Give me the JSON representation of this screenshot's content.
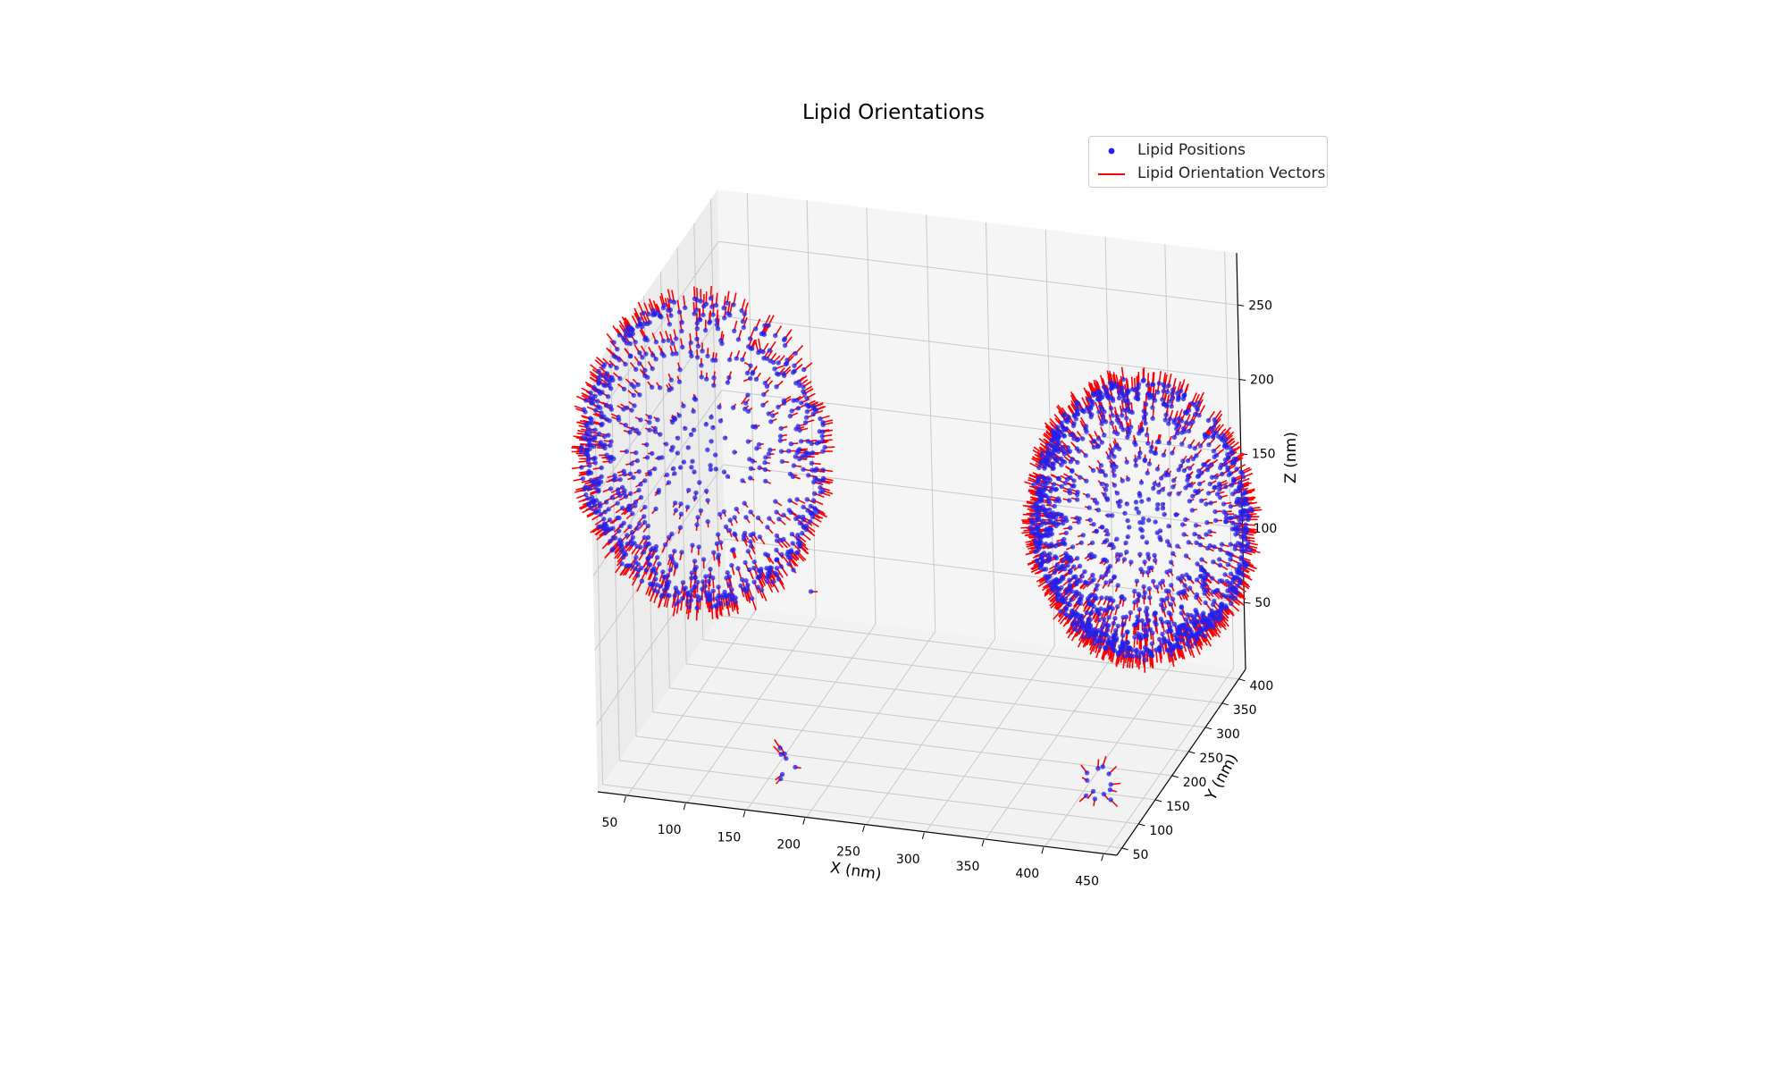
{
  "chart_data": {
    "type": "scatter",
    "subtype": "3d-scatter-with-vectors",
    "title": "Lipid Orientations",
    "xlabel": "X (nm)",
    "ylabel": "Y (nm)",
    "zlabel": "Z (nm)",
    "xlim": [
      25,
      460
    ],
    "ylim": [
      35,
      420
    ],
    "zlim": [
      5,
      285
    ],
    "xticks": [
      "50",
      "100",
      "150",
      "200",
      "250",
      "300",
      "350",
      "400",
      "450"
    ],
    "yticks": [
      "50",
      "100",
      "150",
      "200",
      "250",
      "300",
      "350",
      "400"
    ],
    "zticks": [
      "50",
      "100",
      "150",
      "200",
      "250"
    ],
    "grid": true,
    "legend_position": "top-right",
    "series": [
      {
        "name": "Lipid Positions",
        "kind": "points",
        "color": "#2222ee",
        "description_clusters": [
          {
            "shape": "hemispherical shell",
            "center": [
              410,
              300,
              140
            ],
            "radius": 90
          },
          {
            "shape": "hemispherical shell",
            "center": [
              60,
              240,
              170
            ],
            "radius": 100
          },
          {
            "shape": "small cluster",
            "center": [
              130,
              180,
              250
            ],
            "count": 8
          },
          {
            "shape": "small cluster",
            "center": [
              170,
              140,
              120
            ],
            "count": 2
          },
          {
            "shape": "small cluster",
            "center": [
              170,
              100,
              15
            ],
            "count": 7
          },
          {
            "shape": "small cluster",
            "center": [
              420,
              120,
              20
            ],
            "count": 12
          }
        ]
      },
      {
        "name": "Lipid Orientation Vectors",
        "kind": "vectors",
        "color": "#ff0000",
        "vector_length": 8
      }
    ]
  },
  "legend": {
    "items": [
      {
        "label": "Lipid Positions",
        "color": "#2222ee"
      },
      {
        "label": "Lipid Orientation Vectors",
        "color": "#ff0000"
      }
    ]
  }
}
